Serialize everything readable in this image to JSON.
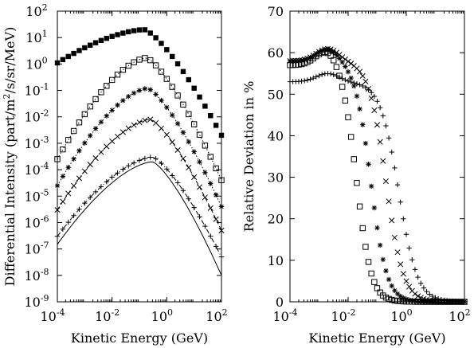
{
  "chart_data": [
    {
      "type": "scatter",
      "xlabel": "Kinetic Energy (GeV)",
      "ylabel_parts": [
        "Differential Intensity (part/m",
        "2",
        "/s/sr/MeV)"
      ],
      "xscale": "log",
      "yscale": "log",
      "xlim": [
        0.0001,
        100
      ],
      "ylim": [
        1e-09,
        100
      ],
      "x_ticks": [
        {
          "base": "10",
          "exp": "-4",
          "value": 0.0001
        },
        {
          "base": "10",
          "exp": "-2",
          "value": 0.01
        },
        {
          "base": "10",
          "exp": "0",
          "value": 1
        },
        {
          "base": "10",
          "exp": "2",
          "value": 100
        }
      ],
      "y_ticks": [
        {
          "base": "10",
          "exp": "2",
          "value": 100
        },
        {
          "base": "10",
          "exp": "1",
          "value": 10
        },
        {
          "base": "10",
          "exp": "0",
          "value": 1
        },
        {
          "base": "10",
          "exp": "-1",
          "value": 0.1
        },
        {
          "base": "10",
          "exp": "-2",
          "value": 0.01
        },
        {
          "base": "10",
          "exp": "-3",
          "value": 0.001
        },
        {
          "base": "10",
          "exp": "-4",
          "value": 0.0001
        },
        {
          "base": "10",
          "exp": "-5",
          "value": 1e-05
        },
        {
          "base": "10",
          "exp": "-6",
          "value": 1e-06
        },
        {
          "base": "10",
          "exp": "-7",
          "value": 1e-07
        },
        {
          "base": "10",
          "exp": "-8",
          "value": 1e-08
        },
        {
          "base": "10",
          "exp": "-9",
          "value": 1e-09
        }
      ],
      "series": [
        {
          "marker": "filled-square",
          "line": "none",
          "peak_x": 0.15,
          "peak_y": 20,
          "low_y": 1.1,
          "high_y": 0.002
        },
        {
          "marker": "open-square",
          "line": "dotted",
          "peak_x": 0.18,
          "peak_y": 1.7,
          "low_y": 0.00025,
          "high_y": 4e-05
        },
        {
          "marker": "asterisk",
          "line": "dotted",
          "peak_x": 0.2,
          "peak_y": 0.12,
          "low_y": 2.5e-05,
          "high_y": 4e-06
        },
        {
          "marker": "x",
          "line": "dashed",
          "peak_x": 0.25,
          "peak_y": 0.008,
          "low_y": 3e-06,
          "high_y": 5e-07
        },
        {
          "marker": "plus",
          "line": "dash-dot",
          "peak_x": 0.3,
          "peak_y": 0.0003,
          "low_y": 3e-07,
          "high_y": 5e-08
        },
        {
          "marker": "none",
          "line": "solid",
          "peak_x": 0.3,
          "peak_y": 0.0002,
          "low_y": 1.5e-07,
          "high_y": 1e-08
        }
      ]
    },
    {
      "type": "scatter",
      "xlabel": "Kinetic Energy (GeV)",
      "ylabel": "Relative Deviation in %",
      "xscale": "log",
      "yscale": "linear",
      "xlim": [
        0.0001,
        100
      ],
      "ylim": [
        0,
        70
      ],
      "x_ticks": [
        {
          "base": "10",
          "exp": "-4",
          "value": 0.0001
        },
        {
          "base": "10",
          "exp": "-2",
          "value": 0.01
        },
        {
          "base": "10",
          "exp": "0",
          "value": 1
        },
        {
          "base": "10",
          "exp": "2",
          "value": 100
        }
      ],
      "y_ticks": [
        "0",
        "10",
        "20",
        "30",
        "40",
        "50",
        "60",
        "70"
      ],
      "series": [
        {
          "marker": "open-square",
          "x_half": 0.02,
          "width": 0.55,
          "low_y": 57,
          "bump_y": 61
        },
        {
          "marker": "asterisk",
          "x_half": 0.06,
          "width": 0.6,
          "low_y": 58,
          "bump_y": 61
        },
        {
          "marker": "x",
          "x_half": 0.2,
          "width": 0.65,
          "low_y": 58,
          "bump_y": 61
        },
        {
          "marker": "plus",
          "x_half": 0.55,
          "width": 0.7,
          "low_y": 53,
          "bump_y": 55
        }
      ]
    }
  ]
}
